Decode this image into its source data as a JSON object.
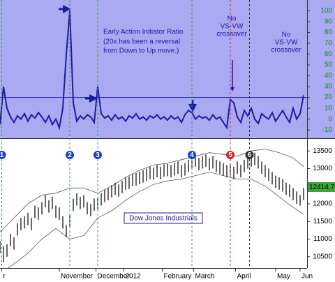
{
  "chart_data": [
    {
      "type": "line",
      "title": "Early Action Initiator Ratio",
      "subtitle": [
        "(20x has been a reversal",
        "from Down to Up move.)"
      ],
      "annotations": [
        {
          "lines": [
            "No",
            "VS-VW",
            "crossover"
          ]
        },
        {
          "lines": [
            "No",
            "VS-VW",
            "crossover"
          ]
        }
      ],
      "threshold": 20,
      "xlim": [
        0,
        176
      ],
      "ylim": [
        -17,
        110
      ],
      "yticks": [
        -10,
        0,
        10,
        20,
        30,
        40,
        50,
        60,
        70,
        80,
        90,
        100
      ],
      "x": [
        0,
        2,
        4,
        6,
        8,
        10,
        12,
        14,
        16,
        18,
        20,
        22,
        24,
        26,
        28,
        30,
        32,
        34,
        36,
        38,
        40,
        42,
        44,
        46,
        48,
        50,
        52,
        54,
        56,
        58,
        60,
        62,
        64,
        66,
        68,
        70,
        72,
        74,
        76,
        78,
        80,
        82,
        84,
        86,
        88,
        90,
        92,
        94,
        96,
        98,
        100,
        102,
        104,
        106,
        108,
        110,
        112,
        114,
        116,
        118,
        120,
        122,
        124,
        126,
        128,
        130,
        132,
        134,
        136,
        138,
        140,
        142,
        144,
        146,
        148,
        150,
        152,
        154,
        156,
        158,
        160,
        162,
        164,
        166,
        168,
        170,
        172,
        174
      ],
      "series": [
        {
          "name": null,
          "color": "#1a1aa8",
          "values": [
            -5,
            30,
            10,
            2,
            -3,
            3,
            0,
            5,
            -2,
            4,
            1,
            6,
            2,
            -3,
            3,
            -5,
            0,
            -8,
            10,
            60,
            100,
            15,
            -2,
            3,
            0,
            4,
            2,
            -3,
            30,
            5,
            1,
            3,
            -1,
            4,
            0,
            2,
            -2,
            3,
            1,
            5,
            0,
            2,
            -1,
            3,
            1,
            4,
            0,
            2,
            -1,
            3,
            0,
            2,
            -3,
            4,
            8,
            6,
            0,
            3,
            1,
            2,
            -1,
            4,
            0,
            2,
            -3,
            -8,
            18,
            15,
            2,
            -3,
            8,
            3,
            10,
            0,
            -4,
            5,
            2,
            0,
            6,
            -2,
            3,
            8,
            2,
            -3,
            10,
            0,
            5,
            22
          ]
        }
      ]
    },
    {
      "type": "ohlc",
      "title": "Dow Jones Industrials",
      "last_label": "12414.75",
      "xlim": [
        0,
        176
      ],
      "ylim": [
        10180,
        13820
      ],
      "yticks": [
        10500,
        11000,
        11500,
        12000,
        12500,
        13000,
        13500
      ],
      "xticks": [
        {
          "value": 1,
          "label": "r"
        },
        {
          "value": 34,
          "label": "November"
        },
        {
          "value": 55,
          "label": "December"
        },
        {
          "value": 71,
          "label": "2012"
        },
        {
          "value": 93,
          "label": "February"
        },
        {
          "value": 111,
          "label": "March"
        },
        {
          "value": 135,
          "label": "April"
        },
        {
          "value": 158,
          "label": "May"
        },
        {
          "value": 172,
          "label": "Jun"
        }
      ],
      "x": [
        0,
        2,
        4,
        6,
        8,
        10,
        12,
        14,
        16,
        18,
        20,
        22,
        24,
        26,
        28,
        30,
        32,
        34,
        36,
        38,
        40,
        42,
        44,
        46,
        48,
        50,
        52,
        54,
        56,
        58,
        60,
        62,
        64,
        66,
        68,
        70,
        72,
        74,
        76,
        78,
        80,
        82,
        84,
        86,
        88,
        90,
        92,
        94,
        96,
        98,
        100,
        102,
        104,
        106,
        108,
        110,
        112,
        114,
        116,
        118,
        120,
        122,
        124,
        126,
        128,
        130,
        132,
        134,
        136,
        138,
        140,
        142,
        144,
        146,
        148,
        150,
        152,
        154,
        156,
        158,
        160,
        162,
        164,
        166,
        168,
        170,
        172,
        174
      ],
      "high": [
        10950,
        10800,
        10850,
        11150,
        11050,
        11450,
        11600,
        11650,
        11750,
        11600,
        11950,
        11900,
        12050,
        12250,
        12100,
        12200,
        11950,
        11900,
        11650,
        11400,
        11700,
        12150,
        12300,
        12200,
        12250,
        12050,
        12000,
        12150,
        12200,
        12300,
        12400,
        12450,
        12530,
        12600,
        12550,
        12650,
        12750,
        12770,
        12850,
        12870,
        12910,
        12950,
        13000,
        13050,
        13030,
        13100,
        13050,
        13120,
        13130,
        13100,
        13150,
        13200,
        13100,
        13150,
        13250,
        13350,
        13400,
        13300,
        13350,
        13400,
        13300,
        13350,
        13250,
        13200,
        13150,
        13100,
        13150,
        13050,
        13200,
        13100,
        13250,
        13350,
        13400,
        13450,
        13350,
        13200,
        13100,
        13000,
        12900,
        12800,
        12750,
        12700,
        12600,
        12550,
        12450,
        12350,
        12250,
        12450
      ],
      "low": [
        10600,
        10350,
        10500,
        10800,
        10700,
        11100,
        11250,
        11300,
        11400,
        11250,
        11600,
        11550,
        11700,
        11900,
        11750,
        11850,
        11600,
        11550,
        11300,
        11050,
        11350,
        11800,
        11950,
        11850,
        11900,
        11700,
        11650,
        11800,
        11850,
        11950,
        12050,
        12100,
        12180,
        12250,
        12200,
        12300,
        12400,
        12420,
        12500,
        12520,
        12560,
        12600,
        12650,
        12700,
        12680,
        12750,
        12700,
        12770,
        12780,
        12750,
        12800,
        12850,
        12750,
        12800,
        12900,
        13000,
        13050,
        12950,
        13000,
        13050,
        12950,
        13000,
        12900,
        12850,
        12800,
        12750,
        12800,
        12700,
        12850,
        12750,
        12900,
        13000,
        13050,
        13100,
        13000,
        12850,
        12750,
        12650,
        12550,
        12450,
        12400,
        12350,
        12250,
        12200,
        12100,
        12000,
        11950,
        12100
      ],
      "band_x": [
        0,
        8,
        16,
        24,
        32,
        40,
        48,
        56,
        64,
        72,
        80,
        88,
        96,
        104,
        112,
        120,
        128,
        136,
        144,
        152,
        160,
        168,
        174
      ],
      "bands": [
        {
          "color": "#555555",
          "values": [
            11200,
            11600,
            12000,
            12250,
            12300,
            12450,
            12450,
            12300,
            12500,
            12750,
            12950,
            13100,
            13150,
            13250,
            13350,
            13450,
            13400,
            13350,
            13500,
            13550,
            13450,
            13300,
            13050
          ]
        },
        {
          "color": "#555555",
          "values": [
            10000,
            10300,
            10600,
            11000,
            11300,
            11000,
            11100,
            11600,
            11800,
            12100,
            12350,
            12550,
            12650,
            12700,
            12800,
            12900,
            12800,
            12700,
            12700,
            12500,
            12200,
            11900,
            11700
          ]
        }
      ],
      "markers": [
        {
          "label": "1",
          "x": 1,
          "color": "#1c3fc8"
        },
        {
          "label": "2",
          "x": 40,
          "color": "#1c3fc8"
        },
        {
          "label": "3",
          "x": 56,
          "color": "#1c3fc8"
        },
        {
          "label": "4",
          "x": 110,
          "color": "#1c3fc8"
        },
        {
          "label": "5",
          "x": 132,
          "color": "#e02020"
        },
        {
          "label": "6",
          "x": 143,
          "color": "#333333"
        }
      ]
    }
  ]
}
